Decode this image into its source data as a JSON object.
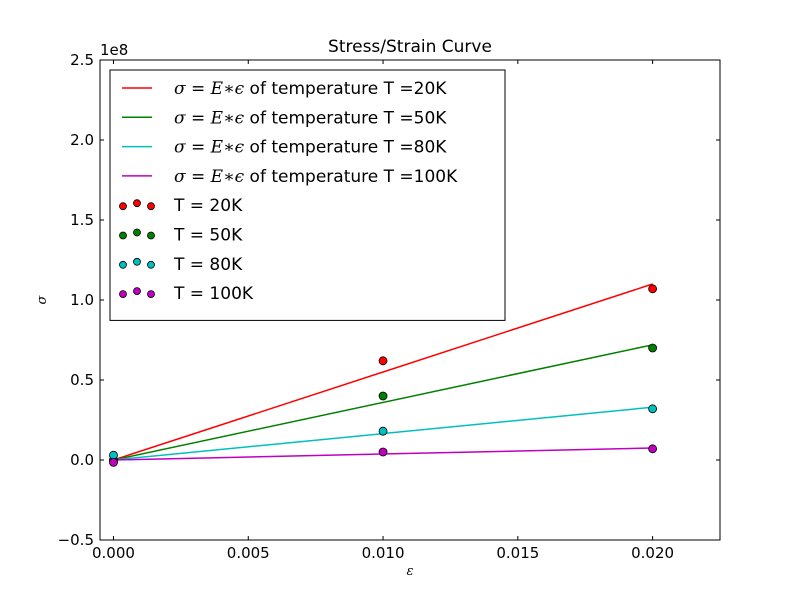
{
  "chart_data": {
    "type": "line",
    "title": "Stress/Strain Curve",
    "xlabel": "ε",
    "ylabel": "σ",
    "y_offset_label": "1e8",
    "y_scale": 100000000,
    "xlim": [
      -0.0005,
      0.0225
    ],
    "ylim": [
      -0.5,
      2.5
    ],
    "x_ticks": [
      0.0,
      0.005,
      0.01,
      0.015,
      0.02
    ],
    "x_tick_labels": [
      "0.000",
      "0.005",
      "0.010",
      "0.015",
      "0.020"
    ],
    "y_ticks": [
      -0.5,
      0.0,
      0.5,
      1.0,
      1.5,
      2.0,
      2.5
    ],
    "y_tick_labels": [
      "−0.5",
      "0.0",
      "0.5",
      "1.0",
      "1.5",
      "2.0",
      "2.5"
    ],
    "grid": false,
    "legend_placement": "top-left",
    "line_series": [
      {
        "name": "σ = E∗ϵ of temperature T =20K",
        "color": "#ff0000",
        "x": [
          0.0,
          0.02
        ],
        "y": [
          0.0,
          1.1
        ]
      },
      {
        "name": "σ = E∗ϵ of temperature T =50K",
        "color": "#008000",
        "x": [
          0.0,
          0.02
        ],
        "y": [
          0.0,
          0.72
        ]
      },
      {
        "name": "σ = E∗ϵ of temperature T =80K",
        "color": "#00bfbf",
        "x": [
          0.0,
          0.02
        ],
        "y": [
          0.0,
          0.33
        ]
      },
      {
        "name": "σ = E∗ϵ of temperature T =100K",
        "color": "#bf00bf",
        "x": [
          0.0,
          0.02
        ],
        "y": [
          0.0,
          0.075
        ]
      }
    ],
    "scatter_series": [
      {
        "name": "T = 20K",
        "color": "#ff0000",
        "x": [
          0.0,
          0.01,
          0.02
        ],
        "y": [
          -0.01,
          0.62,
          1.07
        ]
      },
      {
        "name": "T = 50K",
        "color": "#008000",
        "x": [
          0.0,
          0.01,
          0.02
        ],
        "y": [
          0.0,
          0.4,
          0.7
        ]
      },
      {
        "name": "T = 80K",
        "color": "#00bfbf",
        "x": [
          0.0,
          0.01,
          0.02
        ],
        "y": [
          0.03,
          0.18,
          0.32
        ]
      },
      {
        "name": "T = 100K",
        "color": "#bf00bf",
        "x": [
          0.0,
          0.01,
          0.02
        ],
        "y": [
          -0.015,
          0.05,
          0.07
        ]
      }
    ],
    "legend_entries": [
      {
        "label_math": "σ = E∗ϵ",
        "label_text": " of temperature T =20K",
        "color": "#ff0000",
        "kind": "line"
      },
      {
        "label_math": "σ = E∗ϵ",
        "label_text": " of temperature T =50K",
        "color": "#008000",
        "kind": "line"
      },
      {
        "label_math": "σ = E∗ϵ",
        "label_text": " of temperature T =80K",
        "color": "#00bfbf",
        "kind": "line"
      },
      {
        "label_math": "σ = E∗ϵ",
        "label_text": " of temperature T =100K",
        "color": "#bf00bf",
        "kind": "line"
      },
      {
        "label_text": "T = 20K",
        "color": "#ff0000",
        "kind": "scatter"
      },
      {
        "label_text": "T = 50K",
        "color": "#008000",
        "kind": "scatter"
      },
      {
        "label_text": "T = 80K",
        "color": "#00bfbf",
        "kind": "scatter"
      },
      {
        "label_text": "T = 100K",
        "color": "#bf00bf",
        "kind": "scatter"
      }
    ]
  }
}
